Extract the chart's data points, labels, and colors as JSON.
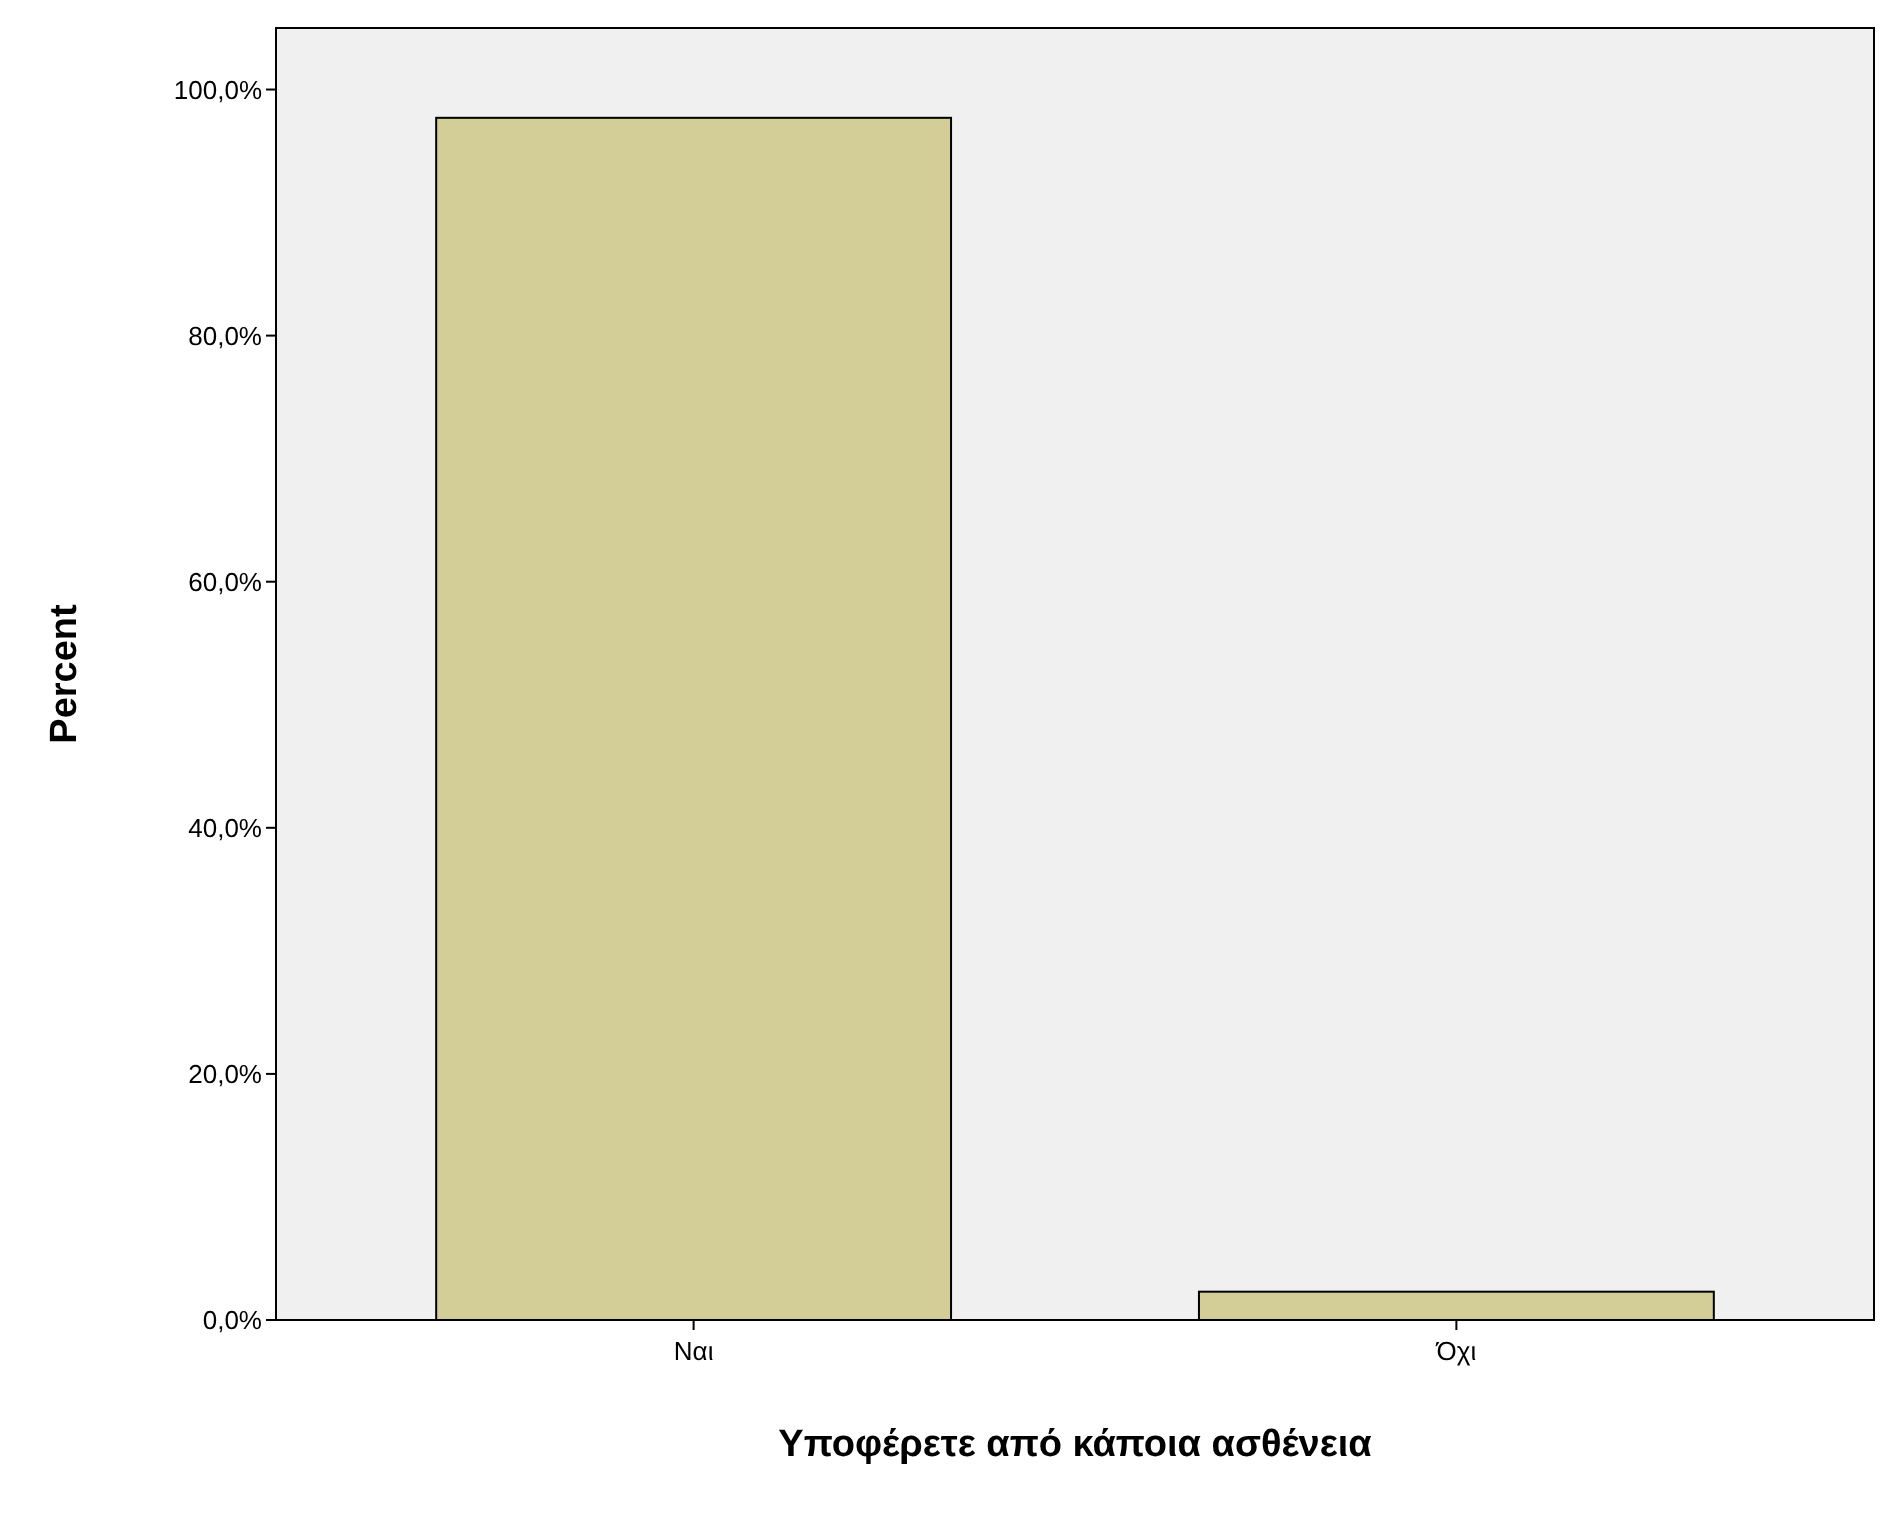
{
  "chart_data": {
    "type": "bar",
    "xlabel": "Υποφέρετε από κάποια ασθένεια",
    "ylabel": "Percent",
    "categories": [
      "Ναι",
      "Όχι"
    ],
    "values": [
      97.7,
      2.3
    ],
    "color": "#d3ce97",
    "ylim": [
      0,
      105
    ],
    "yticks": [
      {
        "value": 0,
        "label": "0,0%"
      },
      {
        "value": 20,
        "label": "20,0%"
      },
      {
        "value": 40,
        "label": "40,0%"
      },
      {
        "value": 60,
        "label": "60,0%"
      },
      {
        "value": 80,
        "label": "80,0%"
      },
      {
        "value": 100,
        "label": "100,0%"
      }
    ],
    "grid": false
  }
}
